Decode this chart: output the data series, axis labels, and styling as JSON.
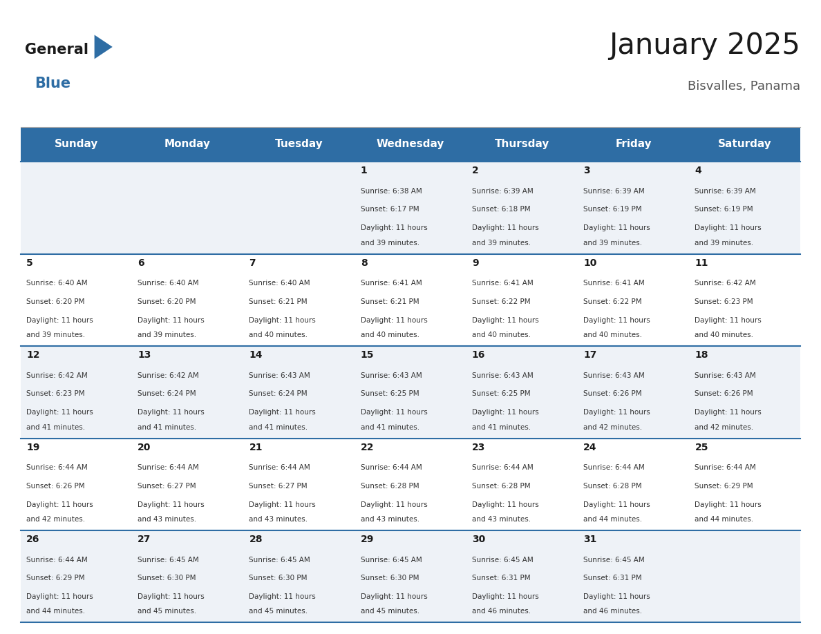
{
  "title": "January 2025",
  "subtitle": "Bisvalles, Panama",
  "header_bg": "#2E6DA4",
  "header_text_color": "#FFFFFF",
  "cell_bg_odd": "#EEF2F7",
  "cell_bg_even": "#FFFFFF",
  "day_headers": [
    "Sunday",
    "Monday",
    "Tuesday",
    "Wednesday",
    "Thursday",
    "Friday",
    "Saturday"
  ],
  "calendar": [
    [
      {
        "day": "",
        "sunrise": "",
        "sunset": "",
        "daylight": ""
      },
      {
        "day": "",
        "sunrise": "",
        "sunset": "",
        "daylight": ""
      },
      {
        "day": "",
        "sunrise": "",
        "sunset": "",
        "daylight": ""
      },
      {
        "day": "1",
        "sunrise": "Sunrise: 6:38 AM",
        "sunset": "Sunset: 6:17 PM",
        "daylight": "Daylight: 11 hours\nand 39 minutes."
      },
      {
        "day": "2",
        "sunrise": "Sunrise: 6:39 AM",
        "sunset": "Sunset: 6:18 PM",
        "daylight": "Daylight: 11 hours\nand 39 minutes."
      },
      {
        "day": "3",
        "sunrise": "Sunrise: 6:39 AM",
        "sunset": "Sunset: 6:19 PM",
        "daylight": "Daylight: 11 hours\nand 39 minutes."
      },
      {
        "day": "4",
        "sunrise": "Sunrise: 6:39 AM",
        "sunset": "Sunset: 6:19 PM",
        "daylight": "Daylight: 11 hours\nand 39 minutes."
      }
    ],
    [
      {
        "day": "5",
        "sunrise": "Sunrise: 6:40 AM",
        "sunset": "Sunset: 6:20 PM",
        "daylight": "Daylight: 11 hours\nand 39 minutes."
      },
      {
        "day": "6",
        "sunrise": "Sunrise: 6:40 AM",
        "sunset": "Sunset: 6:20 PM",
        "daylight": "Daylight: 11 hours\nand 39 minutes."
      },
      {
        "day": "7",
        "sunrise": "Sunrise: 6:40 AM",
        "sunset": "Sunset: 6:21 PM",
        "daylight": "Daylight: 11 hours\nand 40 minutes."
      },
      {
        "day": "8",
        "sunrise": "Sunrise: 6:41 AM",
        "sunset": "Sunset: 6:21 PM",
        "daylight": "Daylight: 11 hours\nand 40 minutes."
      },
      {
        "day": "9",
        "sunrise": "Sunrise: 6:41 AM",
        "sunset": "Sunset: 6:22 PM",
        "daylight": "Daylight: 11 hours\nand 40 minutes."
      },
      {
        "day": "10",
        "sunrise": "Sunrise: 6:41 AM",
        "sunset": "Sunset: 6:22 PM",
        "daylight": "Daylight: 11 hours\nand 40 minutes."
      },
      {
        "day": "11",
        "sunrise": "Sunrise: 6:42 AM",
        "sunset": "Sunset: 6:23 PM",
        "daylight": "Daylight: 11 hours\nand 40 minutes."
      }
    ],
    [
      {
        "day": "12",
        "sunrise": "Sunrise: 6:42 AM",
        "sunset": "Sunset: 6:23 PM",
        "daylight": "Daylight: 11 hours\nand 41 minutes."
      },
      {
        "day": "13",
        "sunrise": "Sunrise: 6:42 AM",
        "sunset": "Sunset: 6:24 PM",
        "daylight": "Daylight: 11 hours\nand 41 minutes."
      },
      {
        "day": "14",
        "sunrise": "Sunrise: 6:43 AM",
        "sunset": "Sunset: 6:24 PM",
        "daylight": "Daylight: 11 hours\nand 41 minutes."
      },
      {
        "day": "15",
        "sunrise": "Sunrise: 6:43 AM",
        "sunset": "Sunset: 6:25 PM",
        "daylight": "Daylight: 11 hours\nand 41 minutes."
      },
      {
        "day": "16",
        "sunrise": "Sunrise: 6:43 AM",
        "sunset": "Sunset: 6:25 PM",
        "daylight": "Daylight: 11 hours\nand 41 minutes."
      },
      {
        "day": "17",
        "sunrise": "Sunrise: 6:43 AM",
        "sunset": "Sunset: 6:26 PM",
        "daylight": "Daylight: 11 hours\nand 42 minutes."
      },
      {
        "day": "18",
        "sunrise": "Sunrise: 6:43 AM",
        "sunset": "Sunset: 6:26 PM",
        "daylight": "Daylight: 11 hours\nand 42 minutes."
      }
    ],
    [
      {
        "day": "19",
        "sunrise": "Sunrise: 6:44 AM",
        "sunset": "Sunset: 6:26 PM",
        "daylight": "Daylight: 11 hours\nand 42 minutes."
      },
      {
        "day": "20",
        "sunrise": "Sunrise: 6:44 AM",
        "sunset": "Sunset: 6:27 PM",
        "daylight": "Daylight: 11 hours\nand 43 minutes."
      },
      {
        "day": "21",
        "sunrise": "Sunrise: 6:44 AM",
        "sunset": "Sunset: 6:27 PM",
        "daylight": "Daylight: 11 hours\nand 43 minutes."
      },
      {
        "day": "22",
        "sunrise": "Sunrise: 6:44 AM",
        "sunset": "Sunset: 6:28 PM",
        "daylight": "Daylight: 11 hours\nand 43 minutes."
      },
      {
        "day": "23",
        "sunrise": "Sunrise: 6:44 AM",
        "sunset": "Sunset: 6:28 PM",
        "daylight": "Daylight: 11 hours\nand 43 minutes."
      },
      {
        "day": "24",
        "sunrise": "Sunrise: 6:44 AM",
        "sunset": "Sunset: 6:28 PM",
        "daylight": "Daylight: 11 hours\nand 44 minutes."
      },
      {
        "day": "25",
        "sunrise": "Sunrise: 6:44 AM",
        "sunset": "Sunset: 6:29 PM",
        "daylight": "Daylight: 11 hours\nand 44 minutes."
      }
    ],
    [
      {
        "day": "26",
        "sunrise": "Sunrise: 6:44 AM",
        "sunset": "Sunset: 6:29 PM",
        "daylight": "Daylight: 11 hours\nand 44 minutes."
      },
      {
        "day": "27",
        "sunrise": "Sunrise: 6:45 AM",
        "sunset": "Sunset: 6:30 PM",
        "daylight": "Daylight: 11 hours\nand 45 minutes."
      },
      {
        "day": "28",
        "sunrise": "Sunrise: 6:45 AM",
        "sunset": "Sunset: 6:30 PM",
        "daylight": "Daylight: 11 hours\nand 45 minutes."
      },
      {
        "day": "29",
        "sunrise": "Sunrise: 6:45 AM",
        "sunset": "Sunset: 6:30 PM",
        "daylight": "Daylight: 11 hours\nand 45 minutes."
      },
      {
        "day": "30",
        "sunrise": "Sunrise: 6:45 AM",
        "sunset": "Sunset: 6:31 PM",
        "daylight": "Daylight: 11 hours\nand 46 minutes."
      },
      {
        "day": "31",
        "sunrise": "Sunrise: 6:45 AM",
        "sunset": "Sunset: 6:31 PM",
        "daylight": "Daylight: 11 hours\nand 46 minutes."
      },
      {
        "day": "",
        "sunrise": "",
        "sunset": "",
        "daylight": ""
      }
    ]
  ],
  "logo_general_color": "#1a1a1a",
  "logo_blue_color": "#2E6DA4",
  "title_color": "#1a1a1a",
  "subtitle_color": "#555555",
  "day_number_color": "#1a1a1a",
  "cell_text_color": "#333333",
  "divider_color": "#2E6DA4",
  "bg_color": "#FFFFFF"
}
